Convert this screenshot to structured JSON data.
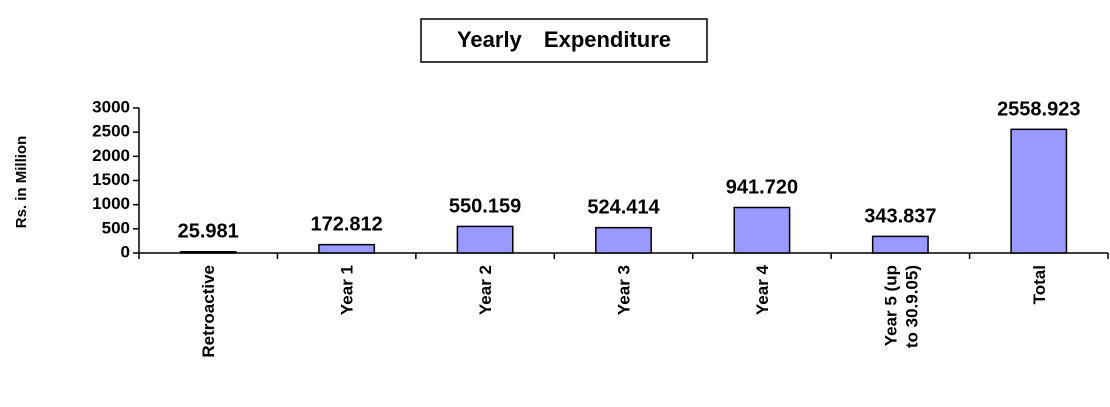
{
  "chart_data": {
    "type": "bar",
    "title": "Yearly Expenditure",
    "y_label": "Rs. in Million",
    "categories": [
      "Retroactive",
      "Year 1",
      "Year 2",
      "Year 3",
      "Year 4",
      "Year 5 (up to 30.9.05)",
      "Total"
    ],
    "values": [
      25.981,
      172.812,
      550.159,
      524.414,
      941.72,
      343.837,
      2558.923
    ],
    "value_labels": [
      "25.981",
      "172.812",
      "550.159",
      "524.414",
      "941.720",
      "343.837",
      "2558.923"
    ],
    "color": "#9999ff",
    "ylim": [
      0,
      3000
    ],
    "yticks": [
      0,
      500,
      1000,
      1500,
      2000,
      2500,
      3000
    ],
    "grid": false
  }
}
